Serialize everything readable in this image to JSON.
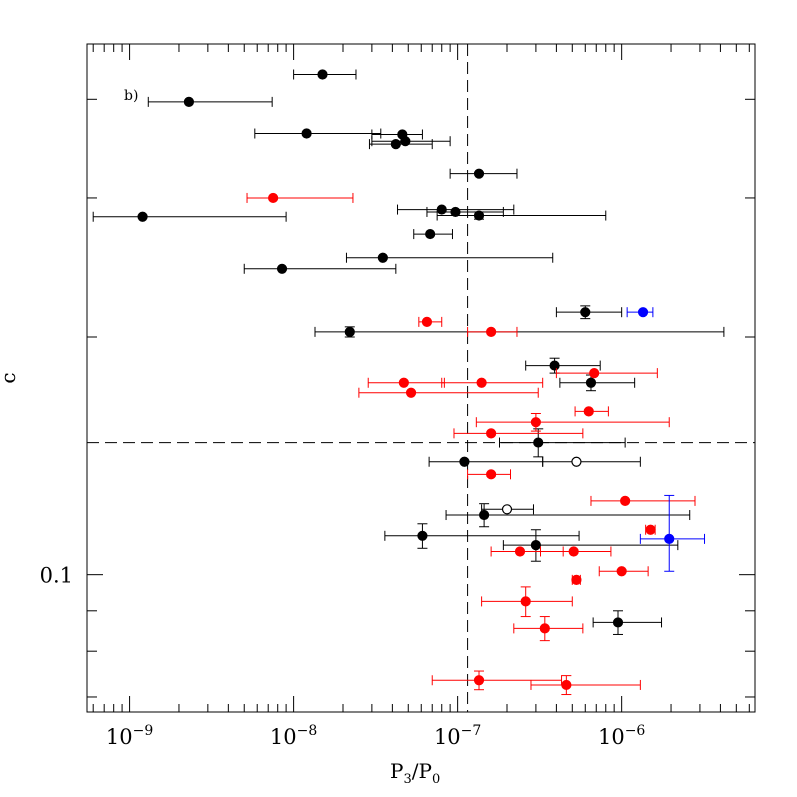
{
  "chart_data": {
    "type": "scatter",
    "panel_label": "b)",
    "xlabel": "P",
    "xlabel_sub": "3",
    "xlabel_tail": "/P",
    "xlabel_sub2": "0",
    "ylabel": "c",
    "xscale": "log",
    "yscale": "log",
    "xlim": [
      5.5e-10,
      6.5e-06
    ],
    "ylim": [
      0.067,
      0.47
    ],
    "x_tick_labels": [
      {
        "value": 1e-09,
        "base": "10",
        "exp": "−9"
      },
      {
        "value": 1e-08,
        "base": "10",
        "exp": "−8"
      },
      {
        "value": 1e-07,
        "base": "10",
        "exp": "−7"
      },
      {
        "value": 1e-06,
        "base": "10",
        "exp": "−6"
      }
    ],
    "y_tick_labels": [
      {
        "value": 0.1,
        "text": "0.1"
      }
    ],
    "reference_lines": {
      "vertical_x": 1.15e-07,
      "horizontal_y": 0.147
    },
    "colors": {
      "black": "#000000",
      "red": "#ff0000",
      "blue": "#0000ff"
    },
    "series": [
      {
        "name": "black",
        "color": "#000000",
        "filled": true,
        "points": [
          {
            "x": 1.5e-08,
            "y": 0.43,
            "xerr": [
              1e-08,
              2.4e-08
            ]
          },
          {
            "x": 2.3e-09,
            "y": 0.397,
            "xerr": [
              1.3e-09,
              7.4e-09
            ]
          },
          {
            "x": 1.2e-08,
            "y": 0.362,
            "xerr": [
              5.8e-09,
              3.4e-08
            ]
          },
          {
            "x": 4.6e-08,
            "y": 0.361,
            "xerr": [
              3e-08,
              6.1e-08
            ]
          },
          {
            "x": 4.8e-08,
            "y": 0.354,
            "xerr": [
              3e-08,
              9e-08
            ]
          },
          {
            "x": 4.2e-08,
            "y": 0.351,
            "xerr": [
              2.9e-08,
              7e-08
            ]
          },
          {
            "x": 1.35e-07,
            "y": 0.322,
            "xerr": [
              9e-08,
              2.3e-07
            ]
          },
          {
            "x": 8e-08,
            "y": 0.29,
            "xerr": [
              4.3e-08,
              2.2e-07
            ]
          },
          {
            "x": 9.7e-08,
            "y": 0.288,
            "xerr": [
              6.5e-08,
              1.9e-07
            ]
          },
          {
            "x": 1.35e-07,
            "y": 0.285,
            "yerr": [
              0.282,
              0.288
            ],
            "xerr": [
              7.5e-08,
              8e-07
            ]
          },
          {
            "x": 1.2e-09,
            "y": 0.284,
            "xerr": [
              6e-10,
              9e-09
            ]
          },
          {
            "x": 6.8e-08,
            "y": 0.27,
            "xerr": [
              5.4e-08,
              9.3e-08
            ]
          },
          {
            "x": 3.5e-08,
            "y": 0.252,
            "xerr": [
              2.1e-08,
              3.8e-07
            ]
          },
          {
            "x": 8.5e-09,
            "y": 0.244,
            "xerr": [
              5e-09,
              4.2e-08
            ]
          },
          {
            "x": 6e-07,
            "y": 0.215,
            "yerr": [
              0.211,
              0.219
            ],
            "xerr": [
              4e-07,
              1e-06
            ]
          },
          {
            "x": 2.2e-08,
            "y": 0.203,
            "yerr": [
              0.2,
              0.206
            ],
            "xerr": [
              1.35e-08,
              4.2e-06
            ]
          },
          {
            "x": 3.9e-07,
            "y": 0.184,
            "yerr": [
              0.18,
              0.188
            ],
            "xerr": [
              2.6e-07,
              7.4e-07
            ]
          },
          {
            "x": 6.5e-07,
            "y": 0.175,
            "yerr": [
              0.171,
              0.179
            ],
            "xerr": [
              4.2e-07,
              1.2e-06
            ]
          },
          {
            "x": 3.1e-07,
            "y": 0.147,
            "yerr": [
              0.141,
              0.153
            ],
            "xerr": [
              1.8e-07,
              1.05e-06
            ]
          },
          {
            "x": 1.1e-07,
            "y": 0.139,
            "xerr": [
              6.7e-08,
              3.3e-07
            ]
          },
          {
            "x": 1.45e-07,
            "y": 0.119,
            "yerr": [
              0.115,
              0.123
            ],
            "xerr": [
              8.5e-08,
              2.6e-06
            ]
          },
          {
            "x": 6.1e-08,
            "y": 0.112,
            "yerr": [
              0.108,
              0.116
            ],
            "xerr": [
              3.6e-08,
              5.5e-07
            ]
          },
          {
            "x": 3e-07,
            "y": 0.109,
            "yerr": [
              0.104,
              0.114
            ],
            "xerr": [
              1.9e-07,
              2.2e-06
            ]
          },
          {
            "x": 9.5e-07,
            "y": 0.087,
            "yerr": [
              0.084,
              0.09
            ],
            "xerr": [
              6.7e-07,
              1.75e-06
            ]
          }
        ]
      },
      {
        "name": "black-open",
        "color": "#000000",
        "filled": false,
        "points": [
          {
            "x": 5.3e-07,
            "y": 0.139,
            "xerr": [
              3.3e-07,
              1.3e-06
            ]
          },
          {
            "x": 2e-07,
            "y": 0.121,
            "xerr": [
              1.4e-07,
              2.9e-07
            ]
          }
        ]
      },
      {
        "name": "red",
        "color": "#ff0000",
        "filled": true,
        "points": [
          {
            "x": 7.5e-09,
            "y": 0.3,
            "xerr": [
              5.2e-09,
              2.3e-08
            ]
          },
          {
            "x": 6.5e-08,
            "y": 0.209,
            "xerr": [
              5.8e-08,
              8e-08
            ]
          },
          {
            "x": 1.6e-07,
            "y": 0.203,
            "xerr": [
              1.15e-07,
              2.3e-07
            ]
          },
          {
            "x": 6.8e-07,
            "y": 0.18,
            "xerr": [
              4e-07,
              1.65e-06
            ]
          },
          {
            "x": 4.7e-08,
            "y": 0.175,
            "xerr": [
              2.85e-08,
              8.3e-08
            ]
          },
          {
            "x": 1.4e-07,
            "y": 0.175,
            "xerr": [
              8e-08,
              3.3e-07
            ]
          },
          {
            "x": 5.2e-08,
            "y": 0.17,
            "xerr": [
              2.5e-08,
              3.1e-07
            ]
          },
          {
            "x": 6.3e-07,
            "y": 0.161,
            "xerr": [
              5.2e-07,
              8.3e-07
            ]
          },
          {
            "x": 3e-07,
            "y": 0.156,
            "yerr": [
              0.152,
              0.16
            ],
            "xerr": [
              1.3e-07,
              1.95e-06
            ]
          },
          {
            "x": 1.6e-07,
            "y": 0.151,
            "xerr": [
              9.5e-08,
              5.8e-07
            ]
          },
          {
            "x": 1.6e-07,
            "y": 0.134,
            "xerr": [
              1.15e-07,
              2.1e-07
            ]
          },
          {
            "x": 1.05e-06,
            "y": 0.124,
            "xerr": [
              6.5e-07,
              2.8e-06
            ]
          },
          {
            "x": 1.5e-06,
            "y": 0.114,
            "xerr": [
              1.4e-06,
              1.6e-06
            ]
          },
          {
            "x": 2.4e-07,
            "y": 0.107,
            "xerr": [
              1.6e-07,
              4.4e-07
            ]
          },
          {
            "x": 5.1e-07,
            "y": 0.107,
            "xerr": [
              3.2e-07,
              8.6e-07
            ]
          },
          {
            "x": 1e-06,
            "y": 0.101,
            "xerr": [
              7.3e-07,
              1.45e-06
            ]
          },
          {
            "x": 5.3e-07,
            "y": 0.0985,
            "xerr": [
              5e-07,
              5.6e-07
            ]
          },
          {
            "x": 2.6e-07,
            "y": 0.0925,
            "yerr": [
              0.0885,
              0.0965
            ],
            "xerr": [
              1.4e-07,
              5e-07
            ]
          },
          {
            "x": 3.4e-07,
            "y": 0.0855,
            "yerr": [
              0.0825,
              0.0885
            ],
            "xerr": [
              2.2e-07,
              5.8e-07
            ]
          },
          {
            "x": 1.35e-07,
            "y": 0.0735,
            "yerr": [
              0.0715,
              0.0755
            ],
            "xerr": [
              7e-08,
              4.3e-07
            ]
          },
          {
            "x": 4.6e-07,
            "y": 0.0725,
            "yerr": [
              0.0705,
              0.0745
            ],
            "xerr": [
              2.8e-07,
              1.3e-06
            ]
          }
        ]
      },
      {
        "name": "blue",
        "color": "#0000ff",
        "filled": true,
        "points": [
          {
            "x": 1.35e-06,
            "y": 0.215,
            "xerr": [
              1.08e-06,
              1.55e-06
            ]
          },
          {
            "x": 1.95e-06,
            "y": 0.111,
            "yerr": [
              0.101,
              0.126
            ],
            "xerr": [
              1.3e-06,
              3.2e-06
            ]
          }
        ]
      }
    ]
  }
}
